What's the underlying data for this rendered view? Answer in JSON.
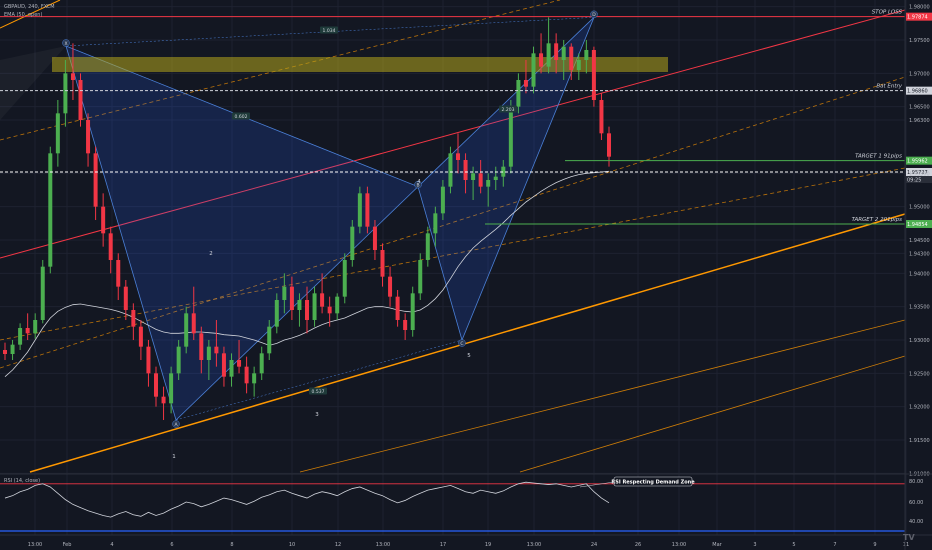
{
  "header": {
    "symbol_line": "GBPAUD, 240, FXCM",
    "ema_line": "EMA (50, open)",
    "rsi_line": "RSI (14, close)"
  },
  "chart_data": {
    "type": "candlestick",
    "symbol": "GBPAUD",
    "timeframe": "240",
    "source": "FXCM",
    "x_ticks": [
      "13:00",
      "Feb",
      "4",
      "6",
      "8",
      "10",
      "12",
      "13:00",
      "17",
      "19",
      "13:00",
      "24",
      "26",
      "13:00",
      "Mar",
      "3",
      "5",
      "7",
      "9",
      "11"
    ],
    "y_ticks": [
      "1.98000",
      "1.97500",
      "1.97000",
      "1.96500",
      "1.96300",
      "1.95500",
      "1.95000",
      "1.94500",
      "1.94300",
      "1.94000",
      "1.93500",
      "1.93000",
      "1.92500",
      "1.92000",
      "1.91500",
      "1.91000"
    ],
    "ylim": [
      1.9105,
      1.981
    ],
    "price_levels": [
      {
        "name": "stop-loss",
        "label": "STOP LOSS",
        "value": 1.9785,
        "tag": "1.97874",
        "color": "#f23645"
      },
      {
        "name": "bat-entry",
        "label": "Bat Entry",
        "value": 1.9674,
        "tag": "1.96860",
        "color": "#d1d4dc"
      },
      {
        "name": "target-1",
        "label": "TARGET 1 91pips",
        "value": 1.9569,
        "tag": "1.95962",
        "color": "#4caf50"
      },
      {
        "name": "current",
        "label": "",
        "value": 1.9552,
        "tag": "1.95727",
        "color": "#ffffff"
      },
      {
        "name": "target-2",
        "label": "TARGET 2 201pips",
        "value": 1.9474,
        "tag": "1.94854",
        "color": "#4caf50"
      }
    ],
    "current_price_tag_sub": "09:25",
    "pattern_points": [
      {
        "label": "X",
        "num": "",
        "value": 1.9741
      },
      {
        "label": "A",
        "num": "1",
        "value": 1.918
      },
      {
        "label": "B",
        "num": "4",
        "value": 1.953
      },
      {
        "label": "C",
        "num": "5",
        "value": 1.93
      },
      {
        "label": "D",
        "num": "",
        "value": 1.9784
      }
    ],
    "pattern_ratios": [
      {
        "text": "1.034"
      },
      {
        "text": "0.602"
      },
      {
        "text": "2.203"
      },
      {
        "text": "0.537"
      }
    ],
    "wave_numbers": [
      "2",
      "3"
    ],
    "candles": [
      [
        1.9285,
        1.9296,
        1.927,
        1.9279
      ],
      [
        1.9279,
        1.93,
        1.927,
        1.9293
      ],
      [
        1.9293,
        1.9325,
        1.9285,
        1.9318
      ],
      [
        1.9318,
        1.934,
        1.93,
        1.931
      ],
      [
        1.931,
        1.934,
        1.9302,
        1.933
      ],
      [
        1.933,
        1.942,
        1.9325,
        1.941
      ],
      [
        1.941,
        1.959,
        1.94,
        1.958
      ],
      [
        1.958,
        1.966,
        1.956,
        1.964
      ],
      [
        1.964,
        1.972,
        1.962,
        1.97
      ],
      [
        1.97,
        1.9745,
        1.966,
        1.969
      ],
      [
        1.969,
        1.97,
        1.962,
        1.963
      ],
      [
        1.963,
        1.964,
        1.956,
        1.958
      ],
      [
        1.958,
        1.959,
        1.948,
        1.95
      ],
      [
        1.95,
        1.952,
        1.944,
        1.946
      ],
      [
        1.946,
        1.947,
        1.94,
        1.942
      ],
      [
        1.942,
        1.943,
        1.936,
        1.938
      ],
      [
        1.938,
        1.939,
        1.933,
        1.9345
      ],
      [
        1.9345,
        1.9355,
        1.93,
        1.932
      ],
      [
        1.932,
        1.933,
        1.927,
        1.929
      ],
      [
        1.929,
        1.93,
        1.923,
        1.925
      ],
      [
        1.925,
        1.926,
        1.92,
        1.9215
      ],
      [
        1.9215,
        1.923,
        1.918,
        1.9205
      ],
      [
        1.9205,
        1.926,
        1.919,
        1.925
      ],
      [
        1.925,
        1.93,
        1.924,
        1.929
      ],
      [
        1.929,
        1.935,
        1.928,
        1.934
      ],
      [
        1.934,
        1.938,
        1.93,
        1.931
      ],
      [
        1.931,
        1.932,
        1.925,
        1.927
      ],
      [
        1.927,
        1.93,
        1.924,
        1.929
      ],
      [
        1.929,
        1.933,
        1.926,
        1.928
      ],
      [
        1.928,
        1.929,
        1.923,
        1.9245
      ],
      [
        1.9245,
        1.928,
        1.923,
        1.927
      ],
      [
        1.927,
        1.93,
        1.925,
        1.926
      ],
      [
        1.926,
        1.9275,
        1.922,
        1.9235
      ],
      [
        1.9235,
        1.926,
        1.9215,
        1.925
      ],
      [
        1.925,
        1.929,
        1.924,
        1.928
      ],
      [
        1.928,
        1.933,
        1.927,
        1.932
      ],
      [
        1.932,
        1.937,
        1.931,
        1.936
      ],
      [
        1.936,
        1.94,
        1.934,
        1.938
      ],
      [
        1.938,
        1.9395,
        1.933,
        1.9345
      ],
      [
        1.9345,
        1.937,
        1.932,
        1.936
      ],
      [
        1.936,
        1.938,
        1.931,
        1.933
      ],
      [
        1.933,
        1.938,
        1.932,
        1.937
      ],
      [
        1.937,
        1.94,
        1.934,
        1.935
      ],
      [
        1.935,
        1.9365,
        1.932,
        1.934
      ],
      [
        1.934,
        1.937,
        1.933,
        1.9365
      ],
      [
        1.9365,
        1.943,
        1.9355,
        1.942
      ],
      [
        1.942,
        1.948,
        1.941,
        1.947
      ],
      [
        1.947,
        1.953,
        1.946,
        1.952
      ],
      [
        1.952,
        1.953,
        1.946,
        1.947
      ],
      [
        1.947,
        1.948,
        1.942,
        1.9435
      ],
      [
        1.9435,
        1.9445,
        1.938,
        1.9395
      ],
      [
        1.9395,
        1.941,
        1.935,
        1.9365
      ],
      [
        1.9365,
        1.9375,
        1.932,
        1.933
      ],
      [
        1.933,
        1.934,
        1.93,
        1.9315
      ],
      [
        1.9315,
        1.938,
        1.9305,
        1.937
      ],
      [
        1.937,
        1.943,
        1.936,
        1.942
      ],
      [
        1.942,
        1.947,
        1.941,
        1.946
      ],
      [
        1.946,
        1.95,
        1.944,
        1.949
      ],
      [
        1.949,
        1.954,
        1.948,
        1.953
      ],
      [
        1.953,
        1.959,
        1.952,
        1.958
      ],
      [
        1.958,
        1.961,
        1.955,
        1.957
      ],
      [
        1.957,
        1.958,
        1.952,
        1.954
      ],
      [
        1.954,
        1.956,
        1.951,
        1.955
      ],
      [
        1.955,
        1.957,
        1.952,
        1.953
      ],
      [
        1.953,
        1.955,
        1.95,
        1.954
      ],
      [
        1.954,
        1.956,
        1.9525,
        1.9545
      ],
      [
        1.9545,
        1.957,
        1.953,
        1.956
      ],
      [
        1.956,
        1.966,
        1.955,
        1.965
      ],
      [
        1.965,
        1.97,
        1.964,
        1.969
      ],
      [
        1.969,
        1.972,
        1.967,
        1.968
      ],
      [
        1.968,
        1.974,
        1.967,
        1.973
      ],
      [
        1.973,
        1.976,
        1.97,
        1.971
      ],
      [
        1.971,
        1.9784,
        1.97,
        1.9745
      ],
      [
        1.9745,
        1.976,
        1.97,
        1.972
      ],
      [
        1.972,
        1.975,
        1.969,
        1.974
      ],
      [
        1.974,
        1.9745,
        1.969,
        1.9705
      ],
      [
        1.9705,
        1.973,
        1.969,
        1.972
      ],
      [
        1.972,
        1.975,
        1.97,
        1.9735
      ],
      [
        1.9735,
        1.974,
        1.965,
        1.966
      ],
      [
        1.966,
        1.967,
        1.96,
        1.961
      ],
      [
        1.961,
        1.962,
        1.956,
        1.9575
      ]
    ],
    "rsi": {
      "label": "RSI (14, close)",
      "y_ticks": [
        "80.00",
        "60.00",
        "40.00"
      ],
      "upper": 70,
      "lower": 30,
      "annotation": "RSI Respecting Demand Zone",
      "values": [
        52,
        55,
        60,
        63,
        68,
        70,
        66,
        58,
        50,
        44,
        40,
        36,
        33,
        30,
        28,
        32,
        35,
        31,
        29,
        34,
        30,
        33,
        38,
        42,
        47,
        45,
        41,
        44,
        48,
        52,
        50,
        47,
        44,
        48,
        53,
        56,
        60,
        62,
        58,
        55,
        52,
        57,
        60,
        58,
        55,
        60,
        64,
        66,
        62,
        58,
        55,
        50,
        46,
        49,
        54,
        58,
        62,
        64,
        66,
        68,
        64,
        60,
        58,
        62,
        60,
        58,
        61,
        66,
        70,
        72,
        71,
        70,
        69,
        70,
        68,
        66,
        68,
        70,
        60,
        52,
        46
      ]
    },
    "ema": [
      1.9245,
      1.9255,
      1.9268,
      1.9282,
      1.93,
      1.9318,
      1.9333,
      1.9343,
      1.9349,
      1.9353,
      1.9354,
      1.9352,
      1.935,
      1.9348,
      1.9346,
      1.9343,
      1.9339,
      1.9334,
      1.9328,
      1.9322,
      1.9316,
      1.9312,
      1.931,
      1.931,
      1.9311,
      1.9312,
      1.9312,
      1.9311,
      1.931,
      1.9308,
      1.9307,
      1.9306,
      1.9303,
      1.93,
      1.9296,
      1.9292,
      1.9295,
      1.93,
      1.9303,
      1.9307,
      1.9312,
      1.9318,
      1.9323,
      1.9327,
      1.933,
      1.9333,
      1.9338,
      1.9343,
      1.9348,
      1.935,
      1.935,
      1.9348,
      1.9345,
      1.9343,
      1.9342,
      1.9345,
      1.9352,
      1.9362,
      1.9375,
      1.9392,
      1.941,
      1.9425,
      1.9438,
      1.9448,
      1.9457,
      1.9466,
      1.9476,
      1.9487,
      1.9497,
      1.9507,
      1.9515,
      1.9523,
      1.953,
      1.9536,
      1.9541,
      1.9545,
      1.9548,
      1.955,
      1.9551,
      1.9552,
      1.9553
    ]
  }
}
